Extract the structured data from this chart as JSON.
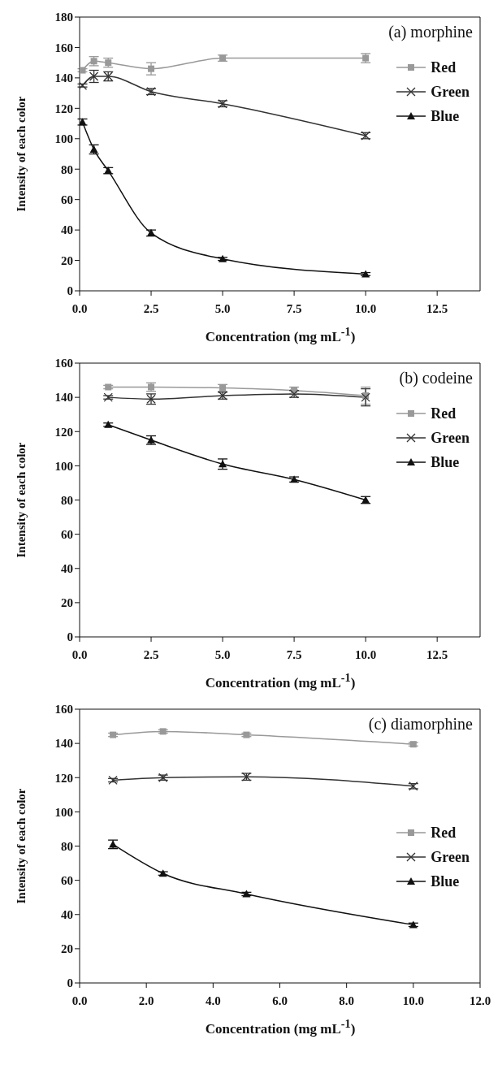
{
  "chart_data": [
    {
      "type": "line",
      "title": "(a) morphine",
      "xlabel": "Concentration (mg mL$^{-1}$)",
      "ylabel": "Intensity of each color",
      "x": [
        0.1,
        0.5,
        1,
        2.5,
        5,
        10
      ],
      "xlim": [
        0,
        14
      ],
      "xticks": [
        {
          "value": 0,
          "label": "0.0"
        },
        2.5,
        {
          "value": 5,
          "label": "5.0"
        },
        7.5,
        {
          "value": 10,
          "label": "10.0"
        },
        12.5
      ],
      "ylim": [
        0,
        180
      ],
      "yticks": [
        0,
        20,
        40,
        60,
        80,
        100,
        120,
        140,
        160,
        180
      ],
      "grid": false,
      "legend": "top right",
      "line_style": "solid",
      "series": [
        {
          "name": "Red",
          "color": "#999999",
          "marker": "square",
          "values": [
            145,
            151,
            150,
            146,
            153,
            153
          ],
          "errors": [
            1,
            3,
            3,
            4,
            2,
            3
          ]
        },
        {
          "name": "Green",
          "color": "#333333",
          "marker": "cross",
          "values": [
            135,
            141,
            141,
            131,
            123,
            102
          ],
          "errors": [
            1,
            4,
            3,
            2,
            2,
            2
          ]
        },
        {
          "name": "Blue",
          "color": "#111111",
          "marker": "triangle",
          "values": [
            111,
            93,
            79,
            38,
            21,
            11
          ],
          "errors": [
            2,
            3,
            2,
            2,
            1,
            1
          ]
        }
      ]
    },
    {
      "type": "line",
      "title": "(b) codeine",
      "xlabel": "Concentration (mg mL$^{-1}$)",
      "ylabel": "Intensity of each color",
      "x": [
        1,
        2.5,
        5,
        7.5,
        10
      ],
      "xlim": [
        0,
        14
      ],
      "xticks": [
        {
          "value": 0,
          "label": "0.0"
        },
        2.5,
        {
          "value": 5,
          "label": "5.0"
        },
        7.5,
        {
          "value": 10,
          "label": "10.0"
        },
        12.5
      ],
      "ylim": [
        0,
        160
      ],
      "yticks": [
        0,
        20,
        40,
        60,
        80,
        100,
        120,
        140,
        160
      ],
      "grid": false,
      "legend": "top right",
      "line_style": "solid",
      "series": [
        {
          "name": "Red",
          "color": "#999999",
          "marker": "square",
          "values": [
            146,
            146,
            145.5,
            144,
            141
          ],
          "errors": [
            1,
            2.5,
            2,
            2,
            5
          ]
        },
        {
          "name": "Green",
          "color": "#333333",
          "marker": "cross",
          "values": [
            140,
            139,
            141,
            142,
            140
          ],
          "errors": [
            1,
            3,
            2,
            2,
            5
          ]
        },
        {
          "name": "Blue",
          "color": "#111111",
          "marker": "triangle",
          "values": [
            124,
            115,
            101,
            92,
            80
          ],
          "errors": [
            1,
            2.5,
            3,
            1.5,
            2
          ]
        }
      ]
    },
    {
      "type": "line",
      "title": "(c) diamorphine",
      "xlabel": "Concentration (mg mL$^{-1}$)",
      "ylabel": "Intensity of each color",
      "x": [
        1,
        2.5,
        5,
        10
      ],
      "xlim": [
        0,
        12
      ],
      "xticks": [
        {
          "value": 0,
          "label": "0.0"
        },
        {
          "value": 2,
          "label": "2.0"
        },
        {
          "value": 4,
          "label": "4.0"
        },
        {
          "value": 6,
          "label": "6.0"
        },
        {
          "value": 8,
          "label": "8.0"
        },
        {
          "value": 10,
          "label": "10.0"
        },
        {
          "value": 12,
          "label": "12.0"
        }
      ],
      "ylim": [
        0,
        160
      ],
      "yticks": [
        0,
        20,
        40,
        60,
        80,
        100,
        120,
        140,
        160
      ],
      "grid": false,
      "legend": "right",
      "line_style": "solid",
      "series": [
        {
          "name": "Red",
          "color": "#999999",
          "marker": "square",
          "values": [
            145,
            147,
            145,
            139.5
          ],
          "errors": [
            1,
            1,
            1,
            1
          ]
        },
        {
          "name": "Green",
          "color": "#333333",
          "marker": "cross",
          "values": [
            118.5,
            120,
            120.5,
            115
          ],
          "errors": [
            1,
            1.5,
            2,
            1.5
          ]
        },
        {
          "name": "Blue",
          "color": "#111111",
          "marker": "triangle",
          "values": [
            81,
            64,
            52,
            34
          ],
          "errors": [
            2.5,
            1,
            1,
            1
          ]
        }
      ]
    }
  ]
}
